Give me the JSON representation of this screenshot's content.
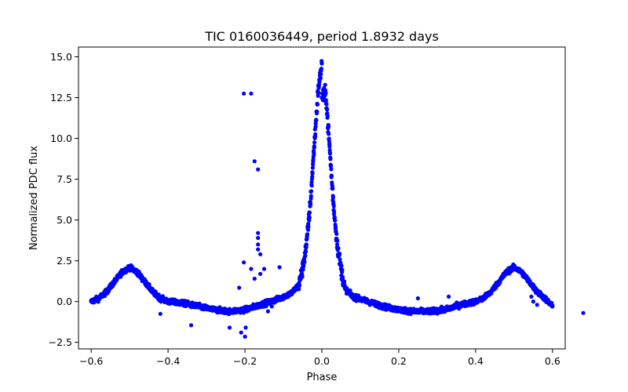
{
  "chart_data": {
    "type": "scatter",
    "title": "TIC 0160036449, period 1.8932 days",
    "xlabel": "Phase",
    "ylabel": "Normalized PDC flux",
    "xlim": [
      -0.633,
      0.633
    ],
    "ylim": [
      -2.9,
      15.6
    ],
    "xticks": [
      -0.6,
      -0.4,
      -0.2,
      0.0,
      0.2,
      0.4,
      0.6
    ],
    "xtick_labels": [
      "−0.6",
      "−0.4",
      "−0.2",
      "0.0",
      "0.2",
      "0.4",
      "0.6"
    ],
    "yticks": [
      -2.5,
      0.0,
      2.5,
      5.0,
      7.5,
      10.0,
      12.5,
      15.0
    ],
    "ytick_labels": [
      "−2.5",
      "0.0",
      "2.5",
      "5.0",
      "7.5",
      "10.0",
      "12.5",
      "15.0"
    ],
    "grid": false,
    "marker_color": "#0000ff",
    "series": [
      {
        "points": [
          [
            -0.6,
            0.0
          ],
          [
            -0.58,
            0.2
          ],
          [
            -0.56,
            0.6
          ],
          [
            -0.54,
            1.2
          ],
          [
            -0.52,
            1.8
          ],
          [
            -0.5,
            2.1
          ],
          [
            -0.48,
            1.8
          ],
          [
            -0.46,
            1.2
          ],
          [
            -0.44,
            0.6
          ],
          [
            -0.42,
            0.2
          ],
          [
            -0.4,
            0.0
          ],
          [
            -0.36,
            -0.1
          ],
          [
            -0.32,
            -0.3
          ],
          [
            -0.28,
            -0.5
          ],
          [
            -0.24,
            -0.6
          ],
          [
            -0.2,
            -0.5
          ],
          [
            -0.16,
            -0.2
          ],
          [
            -0.12,
            0.1
          ],
          [
            -0.08,
            0.5
          ],
          [
            -0.06,
            1.0
          ],
          [
            -0.05,
            2.0
          ],
          [
            -0.04,
            3.5
          ],
          [
            -0.03,
            6.0
          ],
          [
            -0.02,
            9.5
          ],
          [
            -0.01,
            12.8
          ],
          [
            0.0,
            14.6
          ],
          [
            0.0,
            12.5
          ],
          [
            0.01,
            12.8
          ],
          [
            0.02,
            9.5
          ],
          [
            0.03,
            6.0
          ],
          [
            0.04,
            3.5
          ],
          [
            0.05,
            2.0
          ],
          [
            0.06,
            0.8
          ],
          [
            0.08,
            0.3
          ],
          [
            0.12,
            0.0
          ],
          [
            0.16,
            -0.3
          ],
          [
            0.2,
            -0.5
          ],
          [
            0.24,
            -0.6
          ],
          [
            0.28,
            -0.6
          ],
          [
            0.32,
            -0.5
          ],
          [
            0.36,
            -0.2
          ],
          [
            0.4,
            0.0
          ],
          [
            0.42,
            0.2
          ],
          [
            0.44,
            0.6
          ],
          [
            0.46,
            1.2
          ],
          [
            0.48,
            1.8
          ],
          [
            0.5,
            2.1
          ],
          [
            0.52,
            1.8
          ],
          [
            0.54,
            1.2
          ],
          [
            0.56,
            0.6
          ],
          [
            0.58,
            0.2
          ],
          [
            0.6,
            -0.3
          ]
        ]
      }
    ],
    "outliers": [
      [
        -0.203,
        12.75
      ],
      [
        -0.184,
        12.75
      ],
      [
        -0.175,
        8.6
      ],
      [
        -0.166,
        8.1
      ],
      [
        -0.166,
        4.2
      ],
      [
        -0.166,
        3.9
      ],
      [
        -0.166,
        3.5
      ],
      [
        -0.166,
        3.2
      ],
      [
        -0.16,
        2.9
      ],
      [
        -0.15,
        2.0
      ],
      [
        -0.203,
        2.4
      ],
      [
        -0.184,
        2.0
      ],
      [
        -0.11,
        2.1
      ],
      [
        -0.16,
        1.7
      ],
      [
        -0.175,
        1.4
      ],
      [
        -0.215,
        0.85
      ],
      [
        -0.24,
        -1.6
      ],
      [
        -0.21,
        -1.9
      ],
      [
        -0.2,
        -2.15
      ],
      [
        -0.198,
        -1.6
      ],
      [
        -0.14,
        -0.6
      ],
      [
        -0.13,
        -0.3
      ],
      [
        -0.34,
        -1.45
      ],
      [
        -0.42,
        -0.75
      ],
      [
        0.56,
        -0.2
      ],
      [
        0.55,
        0.0
      ],
      [
        0.545,
        0.3
      ],
      [
        0.68,
        -0.7
      ],
      [
        0.25,
        0.2
      ],
      [
        0.33,
        0.3
      ]
    ]
  }
}
